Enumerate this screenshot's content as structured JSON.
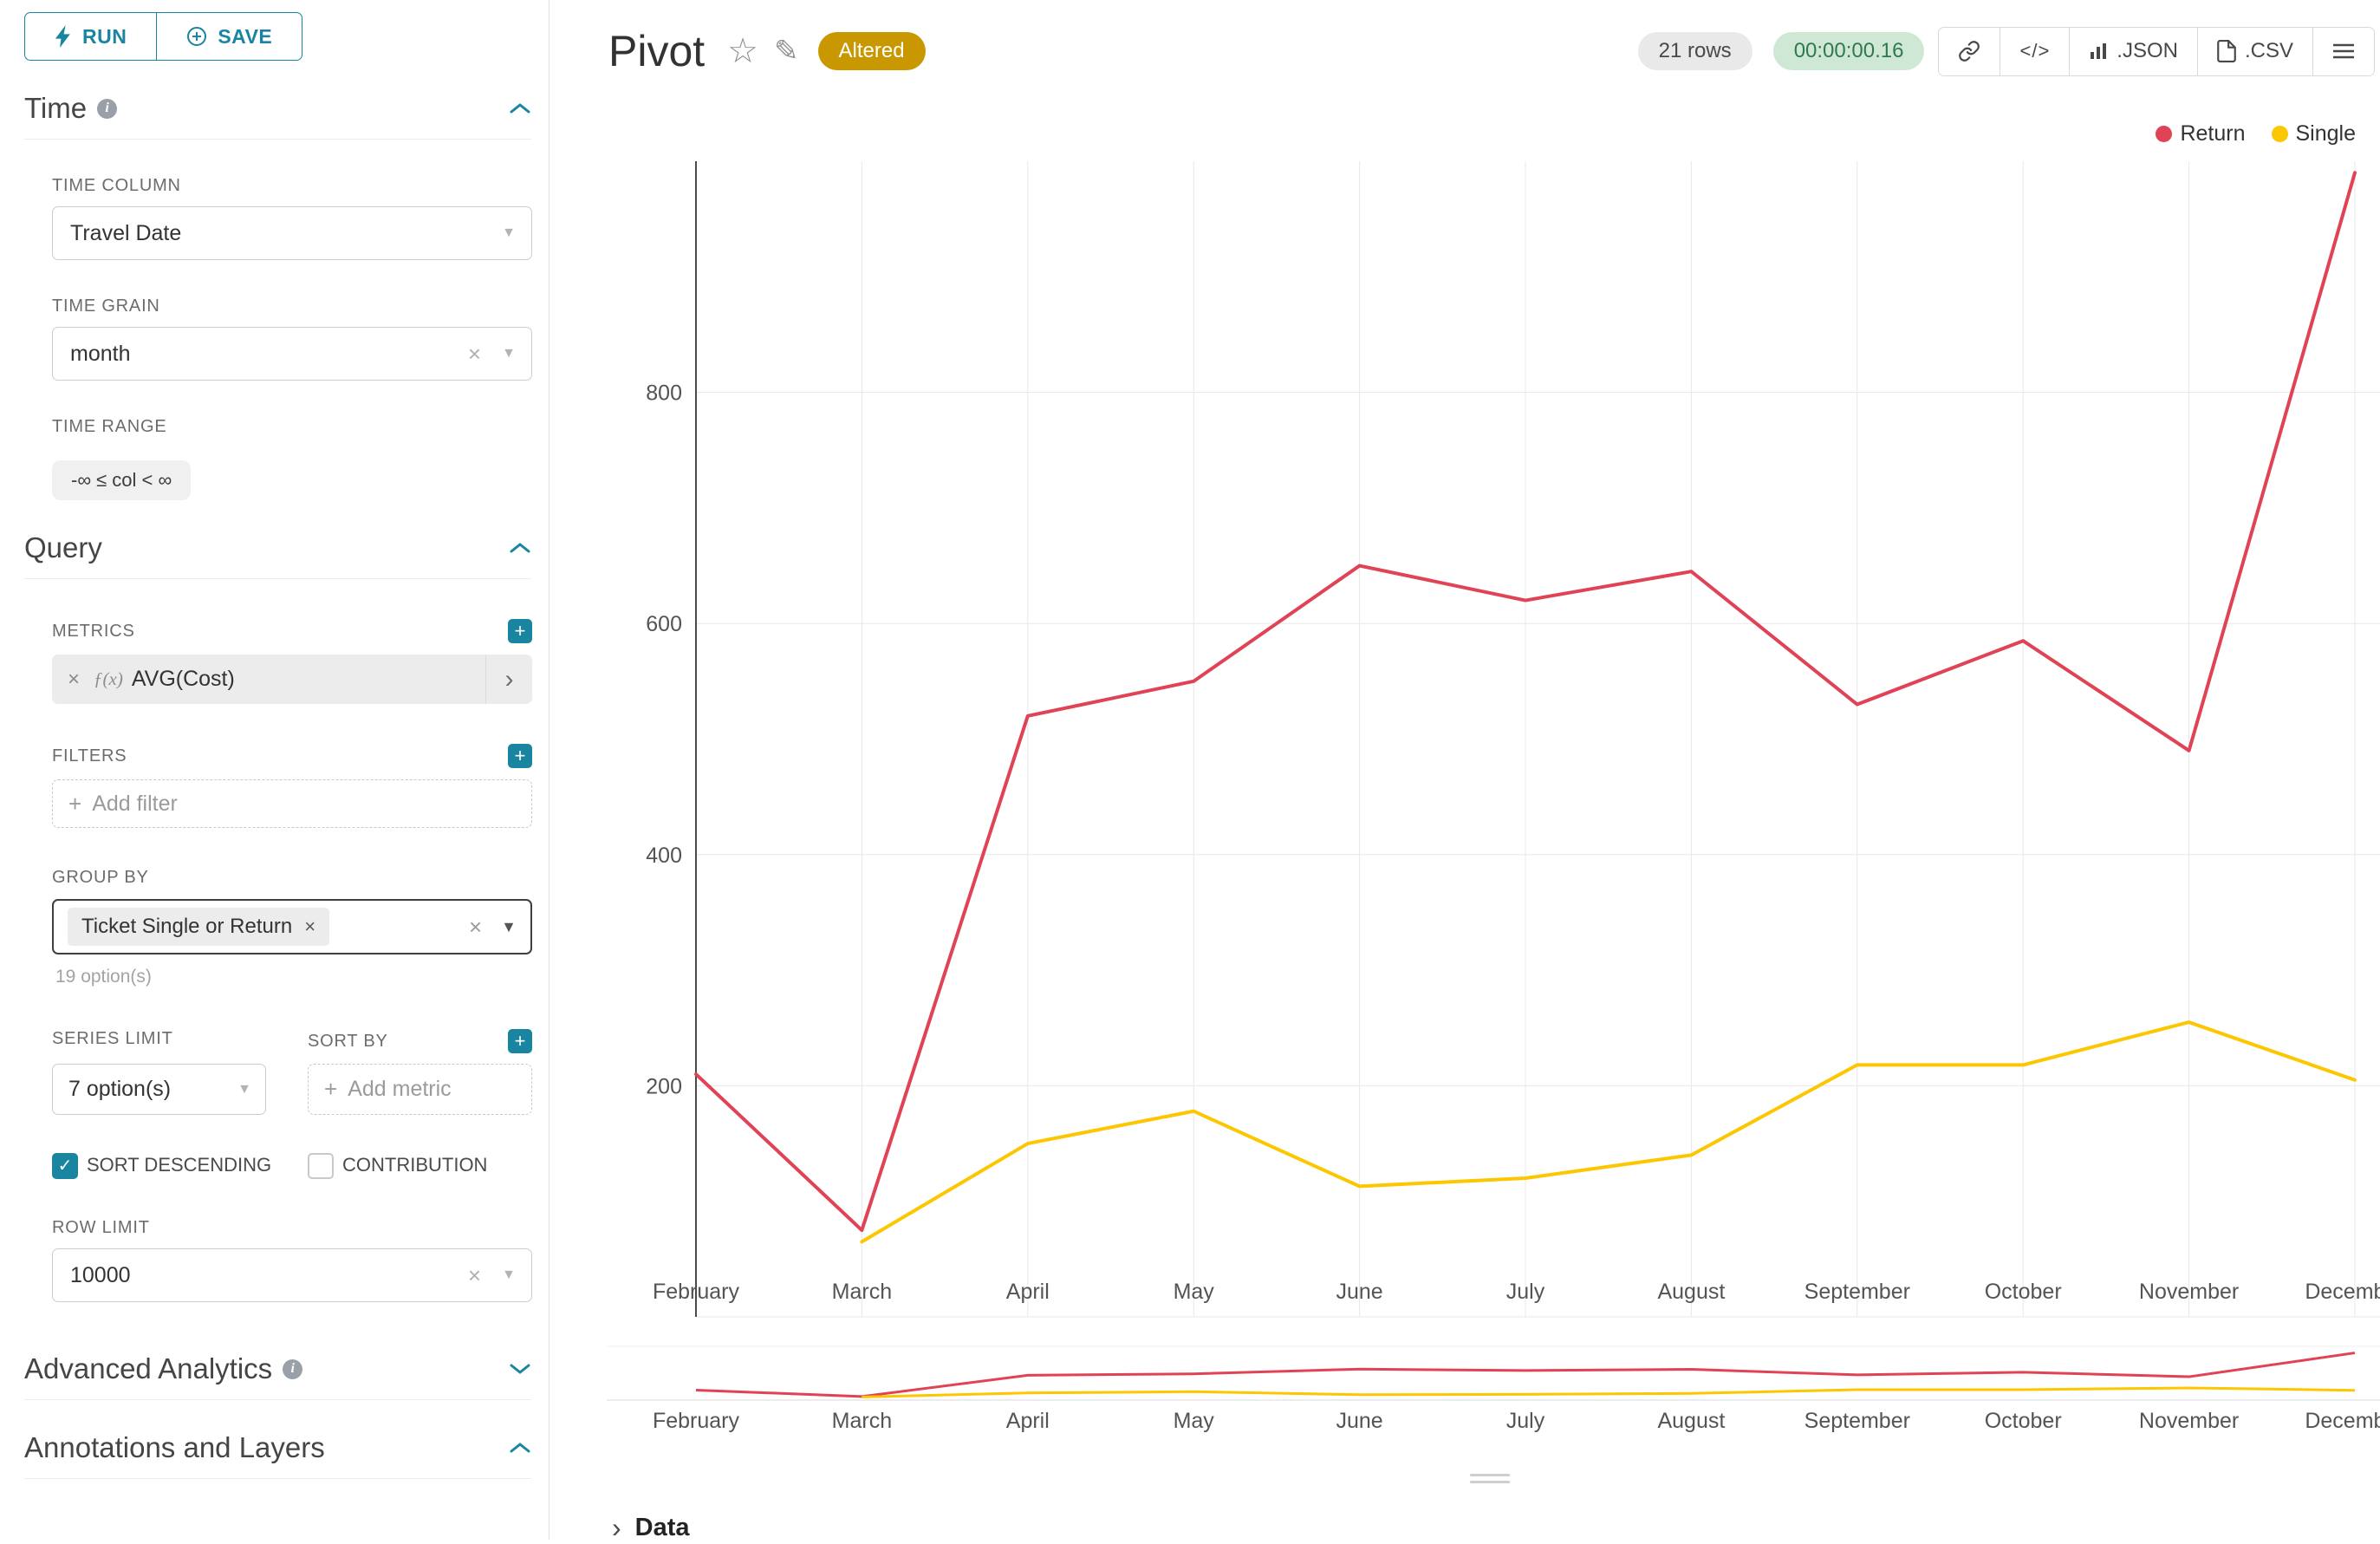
{
  "icons": {
    "close": "×",
    "caret": "▼",
    "check": "✓",
    "plus": "+",
    "star": "☆",
    "edit": "✎",
    "chevron_right": "›",
    "info": "i"
  },
  "sidebar": {
    "run_label": "RUN",
    "save_label": "SAVE",
    "time": {
      "title": "Time",
      "time_column_label": "TIME COLUMN",
      "time_column_value": "Travel Date",
      "time_grain_label": "TIME GRAIN",
      "time_grain_value": "month",
      "time_range_label": "TIME RANGE",
      "time_range_value": "-∞ ≤ col < ∞"
    },
    "query": {
      "title": "Query",
      "metrics_label": "METRICS",
      "metric_fx": "ƒ(x)",
      "metric_value": "AVG(Cost)",
      "filters_label": "FILTERS",
      "add_filter_placeholder": "Add filter",
      "group_by_label": "GROUP BY",
      "group_by_value": "Ticket Single or Return",
      "group_by_hint": "19 option(s)",
      "series_limit_label": "SERIES LIMIT",
      "series_limit_value": "7 option(s)",
      "sort_by_label": "SORT BY",
      "add_metric_placeholder": "Add metric",
      "sort_descending_label": "SORT DESCENDING",
      "contribution_label": "CONTRIBUTION",
      "row_limit_label": "ROW LIMIT",
      "row_limit_value": "10000"
    },
    "advanced_title": "Advanced Analytics",
    "annotations_title": "Annotations and Layers"
  },
  "header": {
    "title": "Pivot",
    "altered": "Altered",
    "rows": "21 rows",
    "timer": "00:00:00.16",
    "code_glyph": "</>",
    "json": ".JSON",
    "csv": ".CSV"
  },
  "footer": {
    "data_label": "Data"
  },
  "chart_data": {
    "type": "line",
    "categories": [
      "February",
      "March",
      "April",
      "May",
      "June",
      "July",
      "August",
      "September",
      "October",
      "November",
      "December"
    ],
    "series": [
      {
        "name": "Return",
        "color": "#e04355",
        "values": [
          210,
          75,
          520,
          550,
          650,
          620,
          645,
          530,
          585,
          490,
          990
        ]
      },
      {
        "name": "Single",
        "color": "#fcc700",
        "values": [
          null,
          65,
          150,
          178,
          113,
          120,
          140,
          218,
          218,
          255,
          205
        ]
      }
    ],
    "ylim": [
      0,
      1000
    ],
    "yticks": [
      200,
      400,
      600,
      800
    ],
    "xlabel": "",
    "ylabel": "",
    "grid": true,
    "legend_position": "top-right",
    "has_range_selector": true
  }
}
